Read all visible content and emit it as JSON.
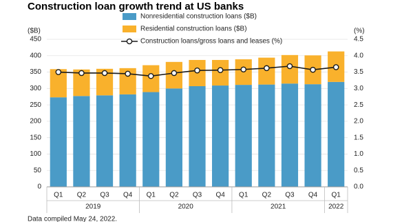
{
  "chart_data": {
    "type": "bar-line",
    "title": "Construction loan growth trend at US banks",
    "y_label": "($B)",
    "y2_label": "(%)",
    "footnote": "Data compiled May 24, 2022.",
    "category_groups": [
      {
        "name": "2019",
        "categories": [
          "Q1",
          "Q2",
          "Q3",
          "Q4"
        ]
      },
      {
        "name": "2020",
        "categories": [
          "Q1",
          "Q2",
          "Q3",
          "Q4"
        ]
      },
      {
        "name": "2021",
        "categories": [
          "Q1",
          "Q2",
          "Q3",
          "Q4"
        ]
      },
      {
        "name": "2022",
        "categories": [
          "Q1"
        ]
      }
    ],
    "series": [
      {
        "name": "Nonresidential construction loans ($B)",
        "type": "bar",
        "color": "#4a9bc7",
        "values": [
          273,
          277,
          279,
          282,
          289,
          300,
          307,
          309,
          311,
          312,
          315,
          313,
          320
        ]
      },
      {
        "name": "Residential construction loans ($B)",
        "type": "bar",
        "color": "#f9b12c",
        "values": [
          86,
          81,
          81,
          80,
          82,
          81,
          80,
          78,
          78,
          82,
          87,
          88,
          93
        ]
      },
      {
        "name": "Construction loans/gross loans and leases (%)",
        "type": "line",
        "axis": "y2",
        "color": "#1a1a1a",
        "values": [
          3.5,
          3.47,
          3.47,
          3.45,
          3.38,
          3.47,
          3.55,
          3.56,
          3.58,
          3.62,
          3.68,
          3.57,
          3.65
        ]
      }
    ],
    "stacked": true,
    "ylim": [
      0,
      450
    ],
    "yticks": [
      0,
      50,
      100,
      150,
      200,
      250,
      300,
      350,
      400,
      450
    ],
    "y2lim": [
      0,
      4.5
    ],
    "y2ticks": [
      {
        "value": 0,
        "label": "0.0"
      },
      0.5,
      {
        "value": 1,
        "label": "1.0"
      },
      1.5,
      {
        "value": 2,
        "label": "2.0"
      },
      2.5,
      {
        "value": 3,
        "label": "3.0"
      },
      3.5,
      {
        "value": 4,
        "label": "4.0"
      },
      4.5
    ],
    "grid": true
  }
}
